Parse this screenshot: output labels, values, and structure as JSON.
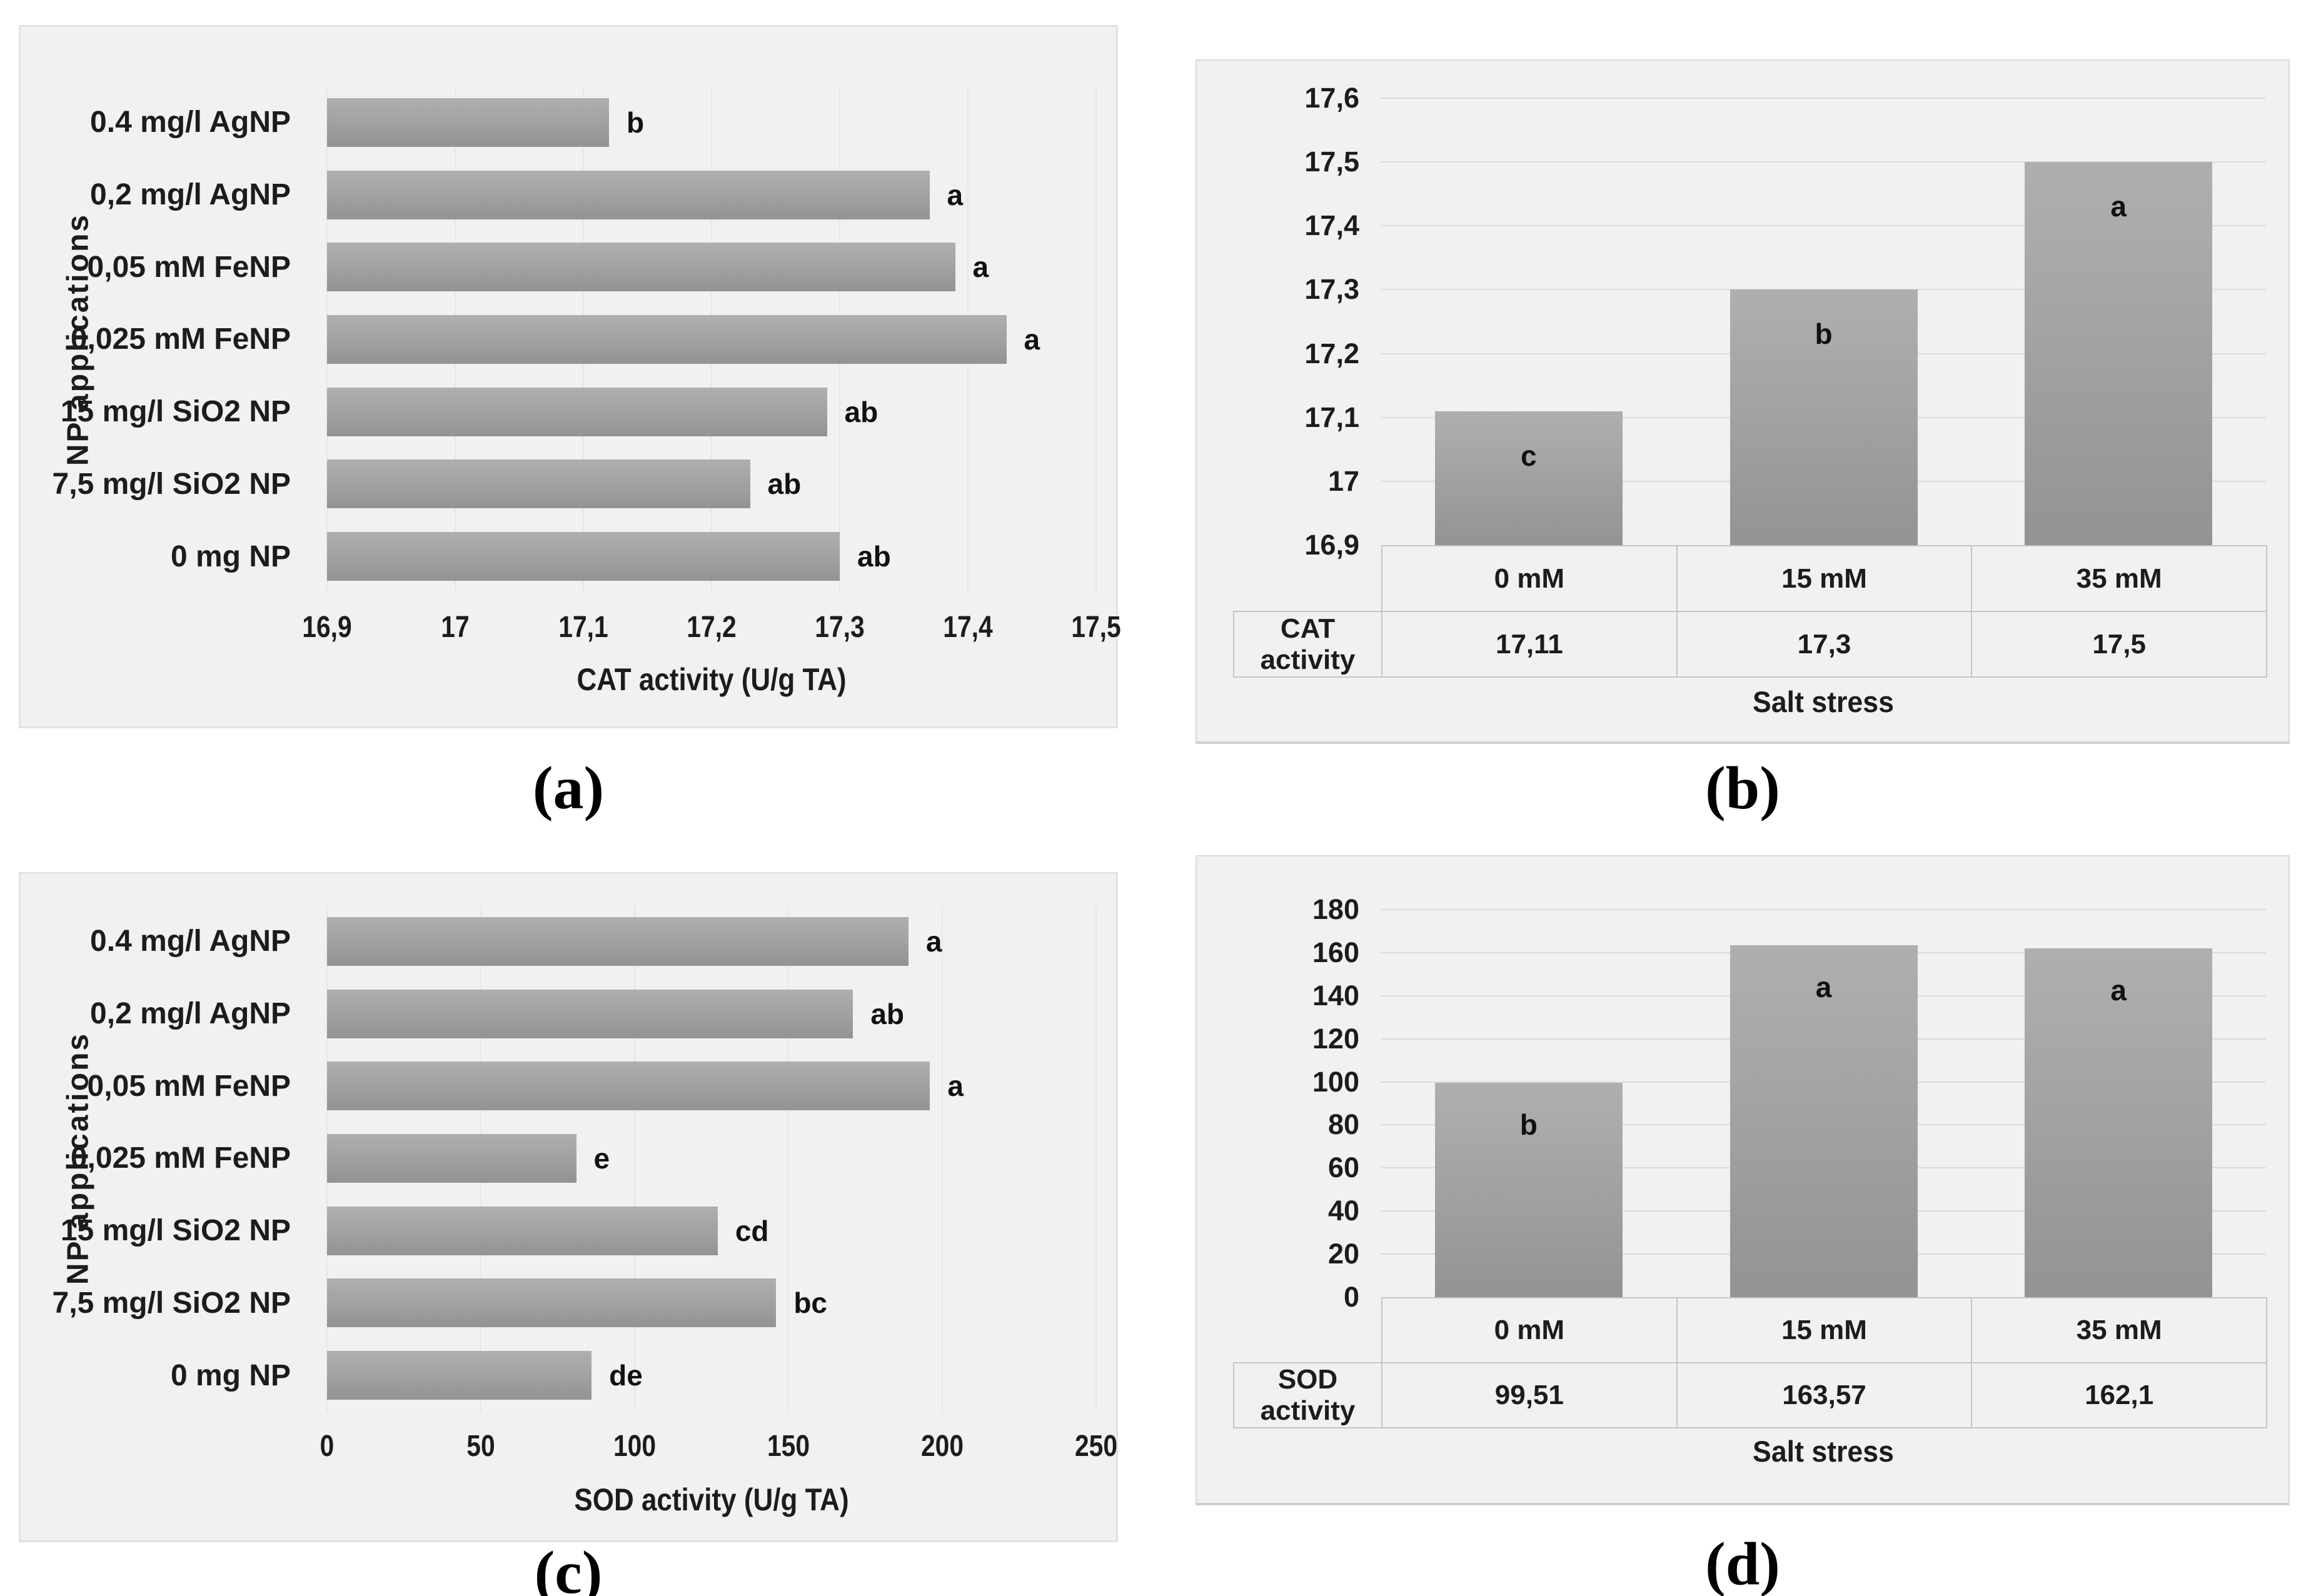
{
  "figure": {
    "description": "Four-panel bar chart figure: CAT and SOD enzyme activity under NP applications and salt stress",
    "background": "#ffffff",
    "panel_background": "#f1f1f1",
    "bar_color_top": "#afafaf",
    "bar_color_bottom": "#939393",
    "gridline_color_vertical": "#e2e6ef",
    "gridline_color_horizontal": "#dbdbdb",
    "table_border_color": "#c5c5c5"
  },
  "chart_data": [
    {
      "id": "a",
      "type": "bar",
      "orientation": "horizontal",
      "caption": "(a)",
      "ylabel": "NP applications",
      "xlabel": "CAT activity (U/g TA)",
      "categories": [
        "0.4 mg/l AgNP",
        "0,2 mg/l AgNP",
        "0,05 mM FeNP",
        "0,025 mM FeNP",
        "15 mg/l SiO2 NP",
        "7,5 mg/l SiO2 NP",
        "0 mg NP"
      ],
      "values": [
        17.12,
        17.37,
        17.39,
        17.43,
        17.29,
        17.23,
        17.3
      ],
      "sig_letters": [
        "b",
        "a",
        "a",
        "a",
        "ab",
        "ab",
        "ab"
      ],
      "xlim": [
        16.9,
        17.5
      ],
      "xticks": [
        "16,9",
        "17",
        "17,1",
        "17,2",
        "17,3",
        "17,4",
        "17,5"
      ],
      "grid": true,
      "legend": "none"
    },
    {
      "id": "b",
      "type": "bar",
      "orientation": "vertical",
      "caption": "(b)",
      "xlabel": "Salt stress",
      "series_label": "CAT activity",
      "categories": [
        "0 mM",
        "15 mM",
        "35 mM"
      ],
      "values": [
        17.11,
        17.3,
        17.5
      ],
      "table_values": [
        "17,11",
        "17,3",
        "17,5"
      ],
      "sig_letters": [
        "c",
        "b",
        "a"
      ],
      "ylim": [
        16.9,
        17.6
      ],
      "yticks": [
        "17,6",
        "17,5",
        "17,4",
        "17,3",
        "17,2",
        "17,1",
        "17",
        "16,9"
      ],
      "grid": true,
      "legend": "table"
    },
    {
      "id": "c",
      "type": "bar",
      "orientation": "horizontal",
      "caption": "(c)",
      "ylabel": "NP applications",
      "xlabel": "SOD activity (U/g TA)",
      "categories": [
        "0.4 mg/l AgNP",
        "0,2 mg/l AgNP",
        "0,05 mM FeNP",
        "0,025 mM FeNP",
        "15 mg/l SiO2 NP",
        "7,5 mg/l SiO2 NP",
        "0 mg NP"
      ],
      "values": [
        189,
        171,
        196,
        81,
        127,
        146,
        86
      ],
      "sig_letters": [
        "a",
        "ab",
        "a",
        "e",
        "cd",
        "bc",
        "de"
      ],
      "xlim": [
        0,
        250
      ],
      "xticks": [
        "0",
        "50",
        "100",
        "150",
        "200",
        "250"
      ],
      "grid": true,
      "legend": "none"
    },
    {
      "id": "d",
      "type": "bar",
      "orientation": "vertical",
      "caption": "(d)",
      "xlabel": "Salt stress",
      "series_label": "SOD activity",
      "categories": [
        "0 mM",
        "15 mM",
        "35 mM"
      ],
      "values": [
        99.51,
        163.57,
        162.1
      ],
      "table_values": [
        "99,51",
        "163,57",
        "162,1"
      ],
      "sig_letters": [
        "b",
        "a",
        "a"
      ],
      "ylim": [
        0,
        180
      ],
      "yticks": [
        "180",
        "160",
        "140",
        "120",
        "100",
        "80",
        "60",
        "40",
        "20",
        "0"
      ],
      "grid": true,
      "legend": "table"
    }
  ]
}
